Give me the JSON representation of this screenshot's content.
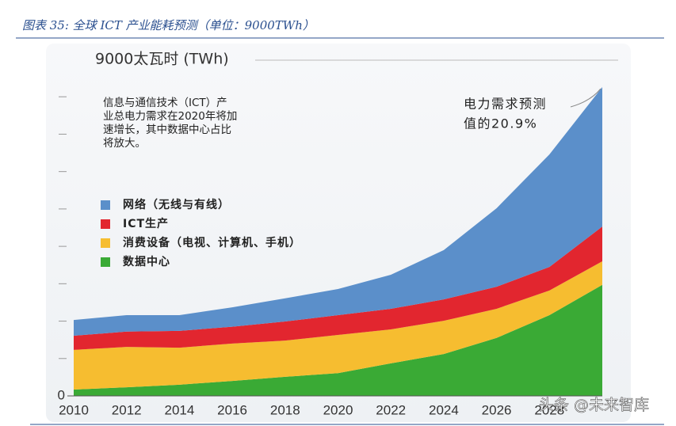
{
  "caption": "图表 35:  全球 ICT 产业能耗预测（单位：9000TWh）",
  "chart_data": {
    "type": "stacked_area",
    "y_label": "9000太瓦时 (TWh)",
    "annotation_left": [
      "信息与通信技术（ICT）产",
      "业总电力需求在2020年将加",
      "速增长，其中数据中心占比",
      "将放大。"
    ],
    "annotation_right": [
      "电力需求预测",
      "值的20.9%"
    ],
    "x": [
      2010,
      2012,
      2014,
      2016,
      2018,
      2020,
      2022,
      2024,
      2026,
      2028,
      2030
    ],
    "series": [
      {
        "name": "数据中心",
        "color": "#3aaa35",
        "values": [
          170,
          230,
          300,
          400,
          510,
          610,
          870,
          1120,
          1550,
          2160,
          2970
        ]
      },
      {
        "name": "消费设备（电视、计算机、手机）",
        "color": "#f6bd30",
        "values": [
          1060,
          1080,
          990,
          1000,
          970,
          1020,
          910,
          890,
          780,
          660,
          630
        ]
      },
      {
        "name": "ICT生产",
        "color": "#e2262f",
        "values": [
          380,
          410,
          450,
          450,
          510,
          530,
          550,
          570,
          590,
          630,
          930
        ]
      },
      {
        "name": "网络（无线与有线）",
        "color": "#5b8fca",
        "values": [
          420,
          440,
          420,
          520,
          620,
          700,
          910,
          1320,
          2100,
          3010,
          3730
        ]
      }
    ],
    "xlim": [
      2010,
      2030
    ],
    "xticks": [
      2010,
      2012,
      2014,
      2016,
      2018,
      2020,
      2022,
      2024,
      2026,
      2028
    ],
    "ylim": [
      0,
      9000
    ],
    "yticks": [
      0
    ],
    "minor_yticks": [
      1000,
      2000,
      3000,
      4000,
      5000,
      6000,
      7000,
      8000
    ]
  },
  "watermark": "头条 @未来智库"
}
